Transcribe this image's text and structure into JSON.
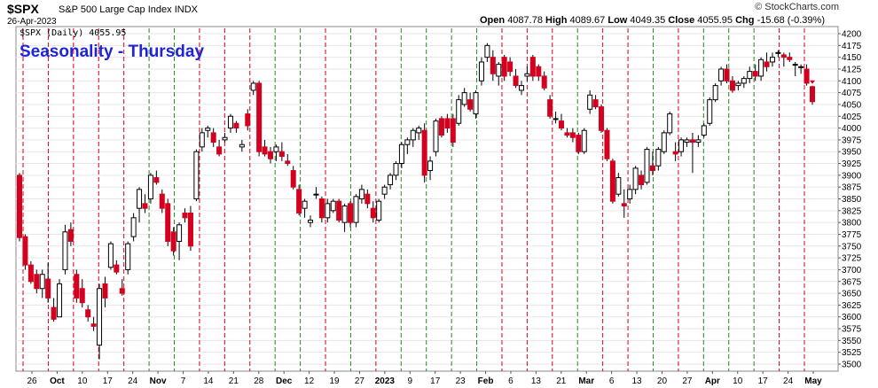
{
  "header": {
    "ticker": "$SPX",
    "description": "S&P 500 Large Cap Index",
    "index_tag": "INDX",
    "date": "26-Apr-2023",
    "credit": "© StockCharts.com",
    "ohlc": {
      "open_label": "Open",
      "open": "4087.78",
      "high_label": "High",
      "high": "4089.67",
      "low_label": "Low",
      "low": "4049.35",
      "close_label": "Close",
      "close": "4055.95",
      "chg_label": "Chg",
      "chg": "-15.68 (-0.39%)"
    }
  },
  "chart_data": {
    "type": "candlestick",
    "title": "Seasonality - Thursday",
    "legend": "$SPX (Daily) 4055.95",
    "ylim": [
      3500,
      4200
    ],
    "y_scale": "linear",
    "y_axis_side": "right",
    "y_ticks": [
      3500,
      3525,
      3550,
      3575,
      3600,
      3625,
      3650,
      3675,
      3700,
      3725,
      3750,
      3775,
      3800,
      3825,
      3850,
      3875,
      3900,
      3925,
      3950,
      3975,
      4000,
      4025,
      4050,
      4075,
      4100,
      4125,
      4150,
      4175,
      4200
    ],
    "x_labels": [
      {
        "label": "26",
        "bold": false
      },
      {
        "label": "Oct",
        "bold": true
      },
      {
        "label": "10",
        "bold": false
      },
      {
        "label": "17",
        "bold": false
      },
      {
        "label": "24",
        "bold": false
      },
      {
        "label": "Nov",
        "bold": true
      },
      {
        "label": "7",
        "bold": false
      },
      {
        "label": "14",
        "bold": false
      },
      {
        "label": "21",
        "bold": false
      },
      {
        "label": "28",
        "bold": false
      },
      {
        "label": "Dec",
        "bold": true
      },
      {
        "label": "12",
        "bold": false
      },
      {
        "label": "19",
        "bold": false
      },
      {
        "label": "27",
        "bold": false
      },
      {
        "label": "2023",
        "bold": true
      },
      {
        "label": "9",
        "bold": false
      },
      {
        "label": "17",
        "bold": false
      },
      {
        "label": "23",
        "bold": false
      },
      {
        "label": "Feb",
        "bold": true
      },
      {
        "label": "6",
        "bold": false
      },
      {
        "label": "13",
        "bold": false
      },
      {
        "label": "21",
        "bold": false
      },
      {
        "label": "Mar",
        "bold": true
      },
      {
        "label": "6",
        "bold": false
      },
      {
        "label": "13",
        "bold": false
      },
      {
        "label": "20",
        "bold": false
      },
      {
        "label": "27",
        "bold": false
      },
      {
        "label": "Apr",
        "bold": true
      },
      {
        "label": "10",
        "bold": false
      },
      {
        "label": "17",
        "bold": false
      },
      {
        "label": "24",
        "bold": false
      },
      {
        "label": "May",
        "bold": true
      }
    ],
    "thursday_markers": {
      "green_meaning": "Thursday up",
      "red_meaning": "Thursday down",
      "colors": {
        "up": "#1a8f1a",
        "down": "#d4001f"
      },
      "sequence": [
        "down",
        "down",
        "down",
        "down",
        "down",
        "up",
        "up",
        "down",
        "down",
        "down",
        "up",
        "up",
        "down",
        "up",
        "down",
        "up",
        "up",
        "up",
        "up",
        "down",
        "down",
        "down",
        "up",
        "down",
        "down",
        "up",
        "down",
        "up",
        "up",
        "up",
        "down",
        "down"
      ]
    },
    "candles": [
      {
        "o": 3900,
        "h": 3905,
        "l": 3760,
        "c": 3768
      },
      {
        "o": 3770,
        "h": 3775,
        "l": 3700,
        "c": 3710
      },
      {
        "o": 3710,
        "h": 3718,
        "l": 3670,
        "c": 3675
      },
      {
        "o": 3690,
        "h": 3700,
        "l": 3650,
        "c": 3660
      },
      {
        "o": 3660,
        "h": 3700,
        "l": 3640,
        "c": 3690
      },
      {
        "o": 3680,
        "h": 3715,
        "l": 3630,
        "c": 3640
      },
      {
        "o": 3620,
        "h": 3640,
        "l": 3590,
        "c": 3595
      },
      {
        "o": 3600,
        "h": 3680,
        "l": 3600,
        "c": 3670
      },
      {
        "o": 3700,
        "h": 3795,
        "l": 3690,
        "c": 3780
      },
      {
        "o": 3785,
        "h": 3800,
        "l": 3750,
        "c": 3760
      },
      {
        "o": 3690,
        "h": 3700,
        "l": 3630,
        "c": 3640
      },
      {
        "o": 3660,
        "h": 3680,
        "l": 3620,
        "c": 3630
      },
      {
        "o": 3615,
        "h": 3625,
        "l": 3590,
        "c": 3600
      },
      {
        "o": 3585,
        "h": 3600,
        "l": 3570,
        "c": 3580
      },
      {
        "o": 3540,
        "h": 3670,
        "l": 3510,
        "c": 3660
      },
      {
        "o": 3670,
        "h": 3685,
        "l": 3620,
        "c": 3640
      },
      {
        "o": 3705,
        "h": 3760,
        "l": 3700,
        "c": 3755
      },
      {
        "o": 3710,
        "h": 3720,
        "l": 3690,
        "c": 3695
      },
      {
        "o": 3660,
        "h": 3680,
        "l": 3645,
        "c": 3650
      },
      {
        "o": 3700,
        "h": 3760,
        "l": 3690,
        "c": 3755
      },
      {
        "o": 3770,
        "h": 3820,
        "l": 3760,
        "c": 3810
      },
      {
        "o": 3830,
        "h": 3875,
        "l": 3800,
        "c": 3870
      },
      {
        "o": 3840,
        "h": 3860,
        "l": 3820,
        "c": 3830
      },
      {
        "o": 3850,
        "h": 3905,
        "l": 3840,
        "c": 3900
      },
      {
        "o": 3895,
        "h": 3910,
        "l": 3880,
        "c": 3885
      },
      {
        "o": 3860,
        "h": 3870,
        "l": 3820,
        "c": 3830
      },
      {
        "o": 3840,
        "h": 3850,
        "l": 3750,
        "c": 3760
      },
      {
        "o": 3780,
        "h": 3790,
        "l": 3730,
        "c": 3740
      },
      {
        "o": 3760,
        "h": 3800,
        "l": 3720,
        "c": 3795
      },
      {
        "o": 3820,
        "h": 3830,
        "l": 3800,
        "c": 3810
      },
      {
        "o": 3820,
        "h": 3835,
        "l": 3740,
        "c": 3750
      },
      {
        "o": 3850,
        "h": 3955,
        "l": 3845,
        "c": 3950
      },
      {
        "o": 3960,
        "h": 4000,
        "l": 3950,
        "c": 3990
      },
      {
        "o": 3995,
        "h": 4005,
        "l": 3980,
        "c": 4000
      },
      {
        "o": 3990,
        "h": 4000,
        "l": 3960,
        "c": 3970
      },
      {
        "o": 3960,
        "h": 3975,
        "l": 3940,
        "c": 3945
      },
      {
        "o": 3975,
        "h": 3990,
        "l": 3970,
        "c": 3980
      },
      {
        "o": 4000,
        "h": 4030,
        "l": 3990,
        "c": 4025
      },
      {
        "o": 4010,
        "h": 4015,
        "l": 3990,
        "c": 4000
      },
      {
        "o": 3960,
        "h": 3975,
        "l": 3950,
        "c": 3965
      },
      {
        "o": 4030,
        "h": 4040,
        "l": 3995,
        "c": 4005
      },
      {
        "o": 4080,
        "h": 4100,
        "l": 4070,
        "c": 4095
      },
      {
        "o": 4095,
        "h": 4100,
        "l": 3940,
        "c": 3950
      },
      {
        "o": 3960,
        "h": 3975,
        "l": 3940,
        "c": 3945
      },
      {
        "o": 3950,
        "h": 3960,
        "l": 3925,
        "c": 3935
      },
      {
        "o": 3950,
        "h": 3965,
        "l": 3930,
        "c": 3960
      },
      {
        "o": 3950,
        "h": 3970,
        "l": 3930,
        "c": 3940
      },
      {
        "o": 3930,
        "h": 3945,
        "l": 3920,
        "c": 3925
      },
      {
        "o": 3910,
        "h": 3920,
        "l": 3870,
        "c": 3875
      },
      {
        "o": 3870,
        "h": 3880,
        "l": 3815,
        "c": 3820
      },
      {
        "o": 3830,
        "h": 3850,
        "l": 3810,
        "c": 3845
      },
      {
        "o": 3800,
        "h": 3815,
        "l": 3790,
        "c": 3805
      },
      {
        "o": 3860,
        "h": 3875,
        "l": 3850,
        "c": 3860
      },
      {
        "o": 3850,
        "h": 3855,
        "l": 3800,
        "c": 3810
      },
      {
        "o": 3810,
        "h": 3850,
        "l": 3800,
        "c": 3840
      },
      {
        "o": 3825,
        "h": 3850,
        "l": 3820,
        "c": 3845
      },
      {
        "o": 3845,
        "h": 3850,
        "l": 3800,
        "c": 3805
      },
      {
        "o": 3800,
        "h": 3840,
        "l": 3780,
        "c": 3835
      },
      {
        "o": 3840,
        "h": 3845,
        "l": 3790,
        "c": 3800
      },
      {
        "o": 3800,
        "h": 3860,
        "l": 3790,
        "c": 3855
      },
      {
        "o": 3850,
        "h": 3880,
        "l": 3840,
        "c": 3870
      },
      {
        "o": 3860,
        "h": 3870,
        "l": 3830,
        "c": 3840
      },
      {
        "o": 3830,
        "h": 3845,
        "l": 3800,
        "c": 3810
      },
      {
        "o": 3805,
        "h": 3850,
        "l": 3800,
        "c": 3845
      },
      {
        "o": 3860,
        "h": 3880,
        "l": 3850,
        "c": 3875
      },
      {
        "o": 3880,
        "h": 3905,
        "l": 3870,
        "c": 3900
      },
      {
        "o": 3900,
        "h": 3930,
        "l": 3890,
        "c": 3925
      },
      {
        "o": 3925,
        "h": 3970,
        "l": 3915,
        "c": 3965
      },
      {
        "o": 3965,
        "h": 3980,
        "l": 3945,
        "c": 3975
      },
      {
        "o": 3975,
        "h": 4000,
        "l": 3960,
        "c": 3995
      },
      {
        "o": 3990,
        "h": 4005,
        "l": 3975,
        "c": 4000
      },
      {
        "o": 3995,
        "h": 4010,
        "l": 3885,
        "c": 3900
      },
      {
        "o": 3910,
        "h": 3940,
        "l": 3890,
        "c": 3930
      },
      {
        "o": 3950,
        "h": 4020,
        "l": 3940,
        "c": 4015
      },
      {
        "o": 4020,
        "h": 4025,
        "l": 3980,
        "c": 3985
      },
      {
        "o": 4020,
        "h": 4030,
        "l": 3990,
        "c": 4000
      },
      {
        "o": 4020,
        "h": 4030,
        "l": 3960,
        "c": 3970
      },
      {
        "o": 4010,
        "h": 4070,
        "l": 4005,
        "c": 4060
      },
      {
        "o": 4050,
        "h": 4085,
        "l": 4045,
        "c": 4075
      },
      {
        "o": 4060,
        "h": 4075,
        "l": 4035,
        "c": 4040
      },
      {
        "o": 4030,
        "h": 4080,
        "l": 4020,
        "c": 4075
      },
      {
        "o": 4100,
        "h": 4150,
        "l": 4090,
        "c": 4140
      },
      {
        "o": 4150,
        "h": 4180,
        "l": 4140,
        "c": 4175
      },
      {
        "o": 4150,
        "h": 4165,
        "l": 4100,
        "c": 4115
      },
      {
        "o": 4110,
        "h": 4140,
        "l": 4090,
        "c": 4135
      },
      {
        "o": 4150,
        "h": 4155,
        "l": 4100,
        "c": 4110
      },
      {
        "o": 4140,
        "h": 4150,
        "l": 4110,
        "c": 4120
      },
      {
        "o": 4110,
        "h": 4125,
        "l": 4085,
        "c": 4090
      },
      {
        "o": 4080,
        "h": 4100,
        "l": 4070,
        "c": 4090
      },
      {
        "o": 4110,
        "h": 4130,
        "l": 4100,
        "c": 4115
      },
      {
        "o": 4150,
        "h": 4155,
        "l": 4100,
        "c": 4110
      },
      {
        "o": 4130,
        "h": 4135,
        "l": 4100,
        "c": 4110
      },
      {
        "o": 4110,
        "h": 4120,
        "l": 4080,
        "c": 4085
      },
      {
        "o": 4060,
        "h": 4070,
        "l": 4020,
        "c": 4025
      },
      {
        "o": 4020,
        "h": 4035,
        "l": 4010,
        "c": 4020
      },
      {
        "o": 4015,
        "h": 4030,
        "l": 3995,
        "c": 4000
      },
      {
        "o": 3990,
        "h": 4000,
        "l": 3980,
        "c": 3985
      },
      {
        "o": 3990,
        "h": 4000,
        "l": 3970,
        "c": 3980
      },
      {
        "o": 3985,
        "h": 3990,
        "l": 3945,
        "c": 3950
      },
      {
        "o": 3950,
        "h": 4000,
        "l": 3945,
        "c": 3995
      },
      {
        "o": 4040,
        "h": 4080,
        "l": 4030,
        "c": 4070
      },
      {
        "o": 4060,
        "h": 4070,
        "l": 4040,
        "c": 4045
      },
      {
        "o": 4045,
        "h": 4050,
        "l": 3990,
        "c": 3995
      },
      {
        "o": 3995,
        "h": 4000,
        "l": 3930,
        "c": 3935
      },
      {
        "o": 3930,
        "h": 3935,
        "l": 3840,
        "c": 3845
      },
      {
        "o": 3860,
        "h": 3905,
        "l": 3855,
        "c": 3895
      },
      {
        "o": 3840,
        "h": 3870,
        "l": 3810,
        "c": 3835
      },
      {
        "o": 3850,
        "h": 3880,
        "l": 3840,
        "c": 3870
      },
      {
        "o": 3870,
        "h": 3920,
        "l": 3860,
        "c": 3915
      },
      {
        "o": 3900,
        "h": 3910,
        "l": 3870,
        "c": 3880
      },
      {
        "o": 3885,
        "h": 3960,
        "l": 3880,
        "c": 3955
      },
      {
        "o": 3920,
        "h": 3950,
        "l": 3900,
        "c": 3910
      },
      {
        "o": 3920,
        "h": 3960,
        "l": 3910,
        "c": 3955
      },
      {
        "o": 3950,
        "h": 3995,
        "l": 3945,
        "c": 3990
      },
      {
        "o": 3990,
        "h": 4035,
        "l": 3985,
        "c": 4030
      },
      {
        "o": 3950,
        "h": 3970,
        "l": 3930,
        "c": 3945
      },
      {
        "o": 3950,
        "h": 3980,
        "l": 3940,
        "c": 3975
      },
      {
        "o": 3970,
        "h": 3980,
        "l": 3960,
        "c": 3975
      },
      {
        "o": 3975,
        "h": 3990,
        "l": 3905,
        "c": 3970
      },
      {
        "o": 3970,
        "h": 3985,
        "l": 3960,
        "c": 3975
      },
      {
        "o": 3985,
        "h": 4010,
        "l": 3980,
        "c": 4005
      },
      {
        "o": 4010,
        "h": 4065,
        "l": 4005,
        "c": 4060
      },
      {
        "o": 4060,
        "h": 4095,
        "l": 4055,
        "c": 4090
      },
      {
        "o": 4100,
        "h": 4130,
        "l": 4090,
        "c": 4125
      },
      {
        "o": 4125,
        "h": 4135,
        "l": 4095,
        "c": 4100
      },
      {
        "o": 4100,
        "h": 4110,
        "l": 4075,
        "c": 4080
      },
      {
        "o": 4090,
        "h": 4100,
        "l": 4080,
        "c": 4095
      },
      {
        "o": 4095,
        "h": 4110,
        "l": 4085,
        "c": 4105
      },
      {
        "o": 4105,
        "h": 4130,
        "l": 4095,
        "c": 4120
      },
      {
        "o": 4120,
        "h": 4135,
        "l": 4100,
        "c": 4110
      },
      {
        "o": 4110,
        "h": 4150,
        "l": 4100,
        "c": 4145
      },
      {
        "o": 4140,
        "h": 4160,
        "l": 4120,
        "c": 4130
      },
      {
        "o": 4140,
        "h": 4160,
        "l": 4130,
        "c": 4150
      },
      {
        "o": 4160,
        "h": 4165,
        "l": 4150,
        "c": 4160
      },
      {
        "o": 4155,
        "h": 4160,
        "l": 4130,
        "c": 4150
      },
      {
        "o": 4150,
        "h": 4160,
        "l": 4140,
        "c": 4145
      },
      {
        "o": 4135,
        "h": 4140,
        "l": 4110,
        "c": 4135
      },
      {
        "o": 4130,
        "h": 4135,
        "l": 4115,
        "c": 4130
      },
      {
        "o": 4125,
        "h": 4135,
        "l": 4090,
        "c": 4095
      },
      {
        "o": 4087.78,
        "h": 4089.67,
        "l": 4049.35,
        "c": 4055.95
      }
    ]
  },
  "colors": {
    "up_candle": "#ffffff",
    "down_candle": "#d4001f",
    "candle_outline": "#000000",
    "title": "#1f24d6",
    "grid": "#e6e6e6"
  }
}
